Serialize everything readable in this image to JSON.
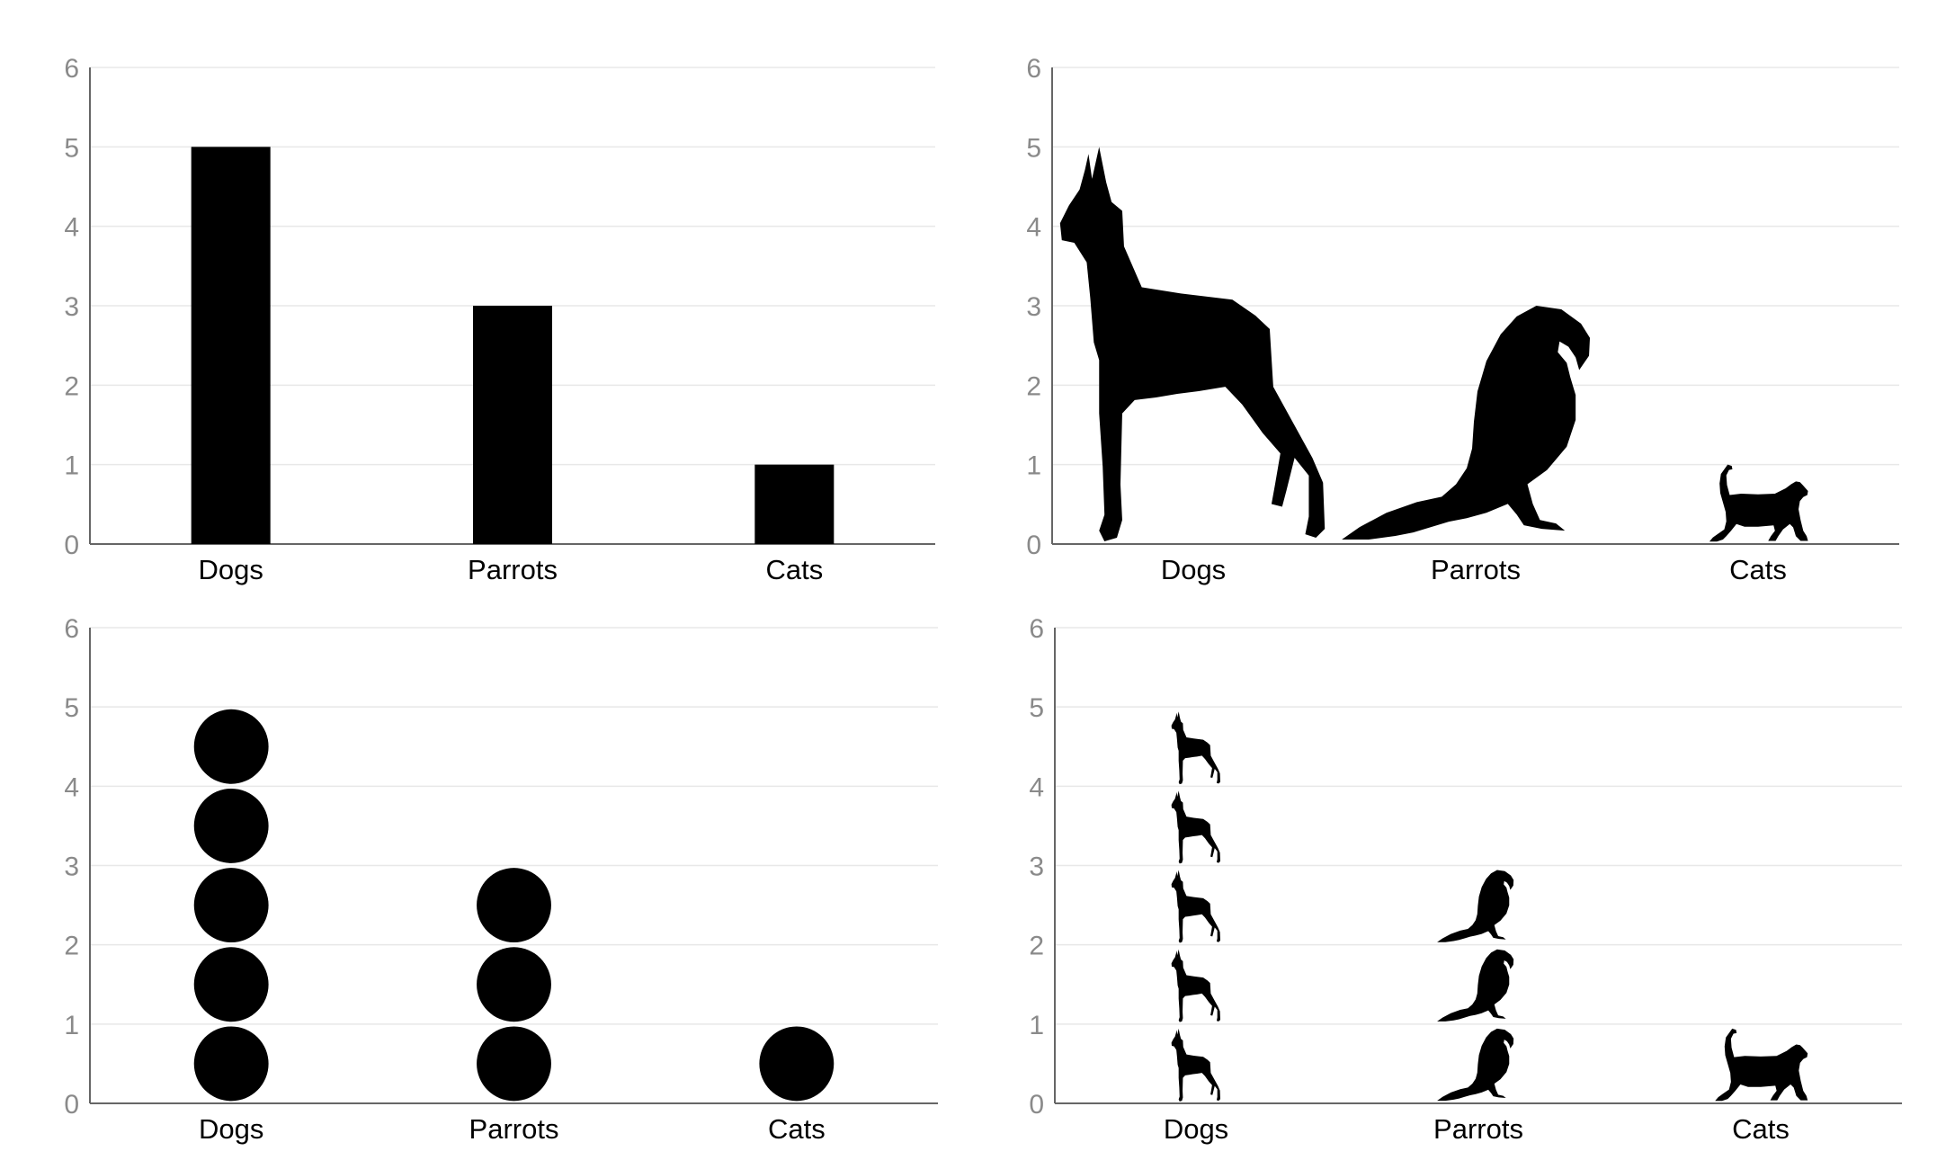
{
  "chart_data": [
    {
      "type": "bar",
      "categories": [
        "Dogs",
        "Parrots",
        "Cats"
      ],
      "values": [
        5,
        3,
        1
      ],
      "ylim": [
        0,
        6
      ],
      "yticks": [
        "0",
        "1",
        "2",
        "3",
        "4",
        "5",
        "6"
      ],
      "grid": true,
      "mark": "bar",
      "color": "#000000"
    },
    {
      "type": "bar",
      "categories": [
        "Dogs",
        "Parrots",
        "Cats"
      ],
      "values": [
        5,
        3,
        1
      ],
      "ylim": [
        0,
        6
      ],
      "yticks": [
        "0",
        "1",
        "2",
        "3",
        "4",
        "5",
        "6"
      ],
      "grid": true,
      "mark": "scaled-silhouette",
      "icons": [
        "dog-icon",
        "parrot-icon",
        "cat-icon"
      ],
      "color": "#000000"
    },
    {
      "type": "bar",
      "categories": [
        "Dogs",
        "Parrots",
        "Cats"
      ],
      "values": [
        5,
        3,
        1
      ],
      "ylim": [
        0,
        6
      ],
      "yticks": [
        "0",
        "1",
        "2",
        "3",
        "4",
        "5",
        "6"
      ],
      "grid": true,
      "mark": "stacked-circles",
      "color": "#000000"
    },
    {
      "type": "bar",
      "categories": [
        "Dogs",
        "Parrots",
        "Cats"
      ],
      "values": [
        5,
        3,
        1
      ],
      "ylim": [
        0,
        6
      ],
      "yticks": [
        "0",
        "1",
        "2",
        "3",
        "4",
        "5",
        "6"
      ],
      "grid": true,
      "mark": "stacked-icons",
      "icons": [
        "dog-icon",
        "parrot-icon",
        "cat-icon"
      ],
      "color": "#000000"
    }
  ],
  "style": {
    "grid_color": "#e8e8e8",
    "axis_color": "#666666",
    "tick_label_color": "#8a8a8a",
    "category_label_color": "#000000"
  }
}
